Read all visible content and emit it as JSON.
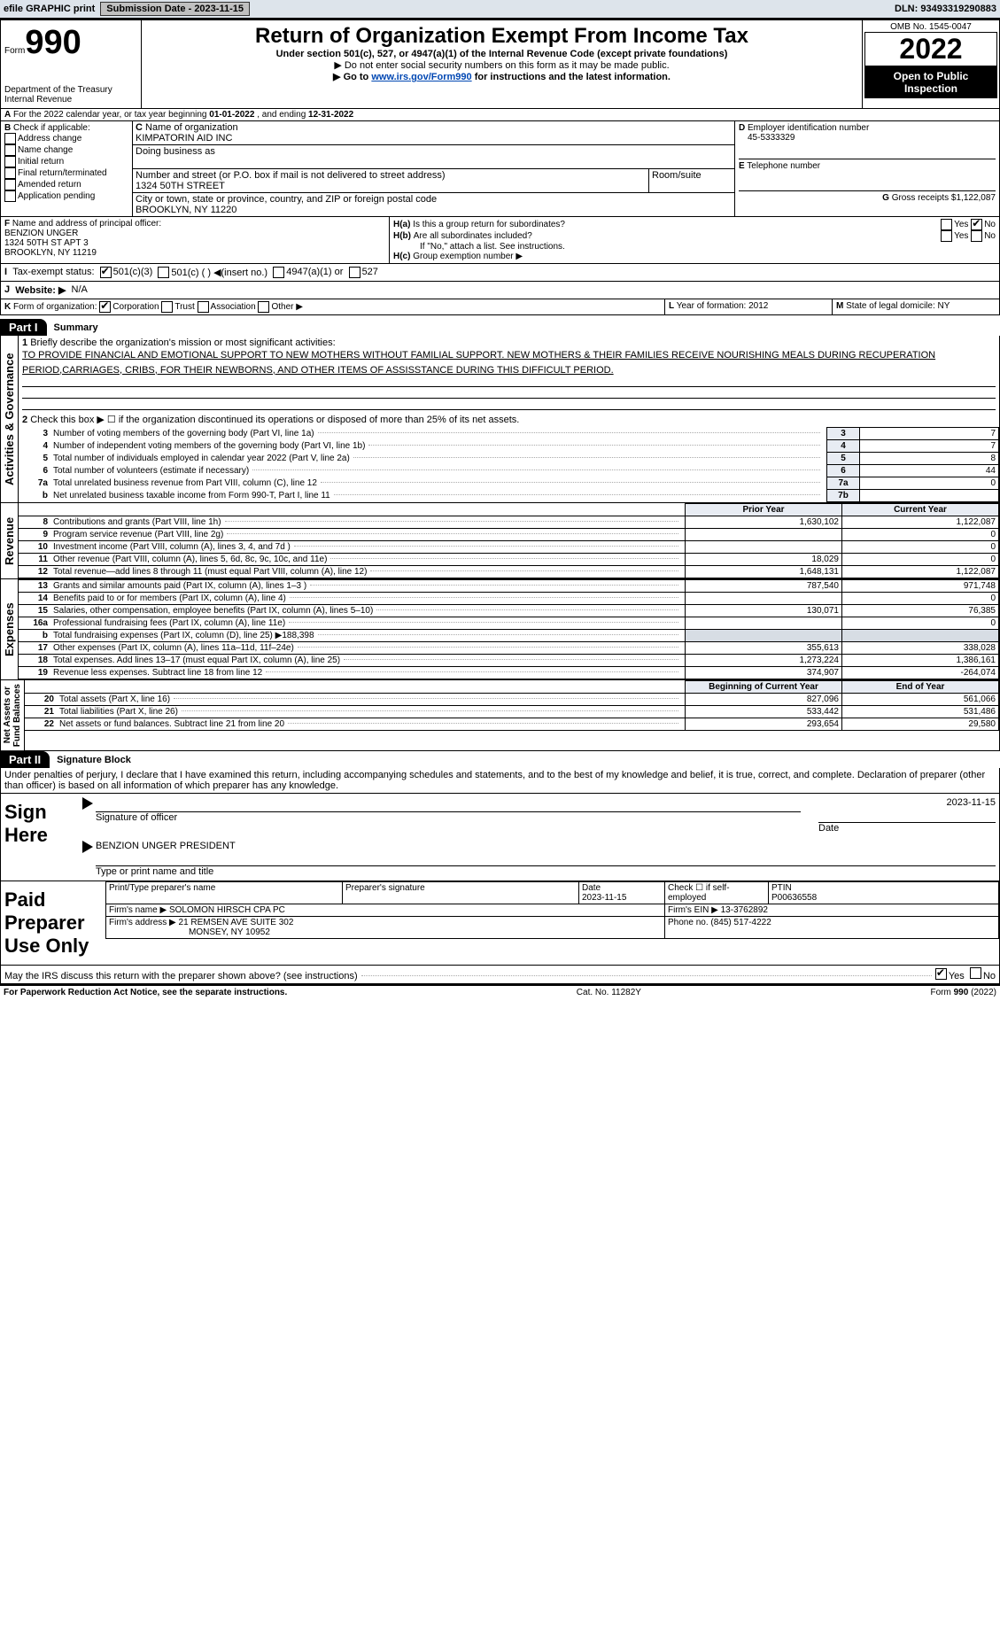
{
  "topbar": {
    "efile": "efile GRAPHIC print",
    "submission": "Submission Date - 2023-11-15",
    "dln": "DLN: 93493319290883"
  },
  "hdr": {
    "form": "990",
    "formword": "Form",
    "dept": "Department of the Treasury\nInternal Revenue",
    "title": "Return of Organization Exempt From Income Tax",
    "sub1": "Under section 501(c), 527, or 4947(a)(1) of the Internal Revenue Code (except private foundations)",
    "sub2": "▶ Do not enter social security numbers on this form as it may be made public.",
    "sub3": "▶ Go to ",
    "sub3link": "www.irs.gov/Form990",
    "sub3b": " for instructions and the latest information.",
    "omb": "OMB No. 1545-0047",
    "year": "2022",
    "badge": "Open to Public\nInspection"
  },
  "periodA": {
    "pre": "For the 2022 calendar year, or tax year beginning ",
    "beg": "01-01-2022",
    "mid": " , and ending ",
    "end": "12-31-2022"
  },
  "B": {
    "label": "Check if applicable:",
    "opts": [
      "Address change",
      "Name change",
      "Initial return",
      "Final return/terminated",
      "Amended return",
      "Application pending"
    ]
  },
  "C": {
    "nameLabel": "Name of organization",
    "name": "KIMPATORIN AID INC",
    "dbaLabel": "Doing business as",
    "dba": "",
    "streetLabel": "Number and street (or P.O. box if mail is not delivered to street address)",
    "street": "1324 50TH STREET",
    "room": "Room/suite",
    "cityLabel": "City or town, state or province, country, and ZIP or foreign postal code",
    "city": "BROOKLYN, NY  11220"
  },
  "D": {
    "label": "Employer identification number",
    "val": "45-5333329"
  },
  "E": {
    "label": "Telephone number",
    "val": ""
  },
  "G": {
    "label": "Gross receipts $",
    "val": "1,122,087"
  },
  "F": {
    "label": "Name and address of principal officer:",
    "name": "BENZION UNGER",
    "addr1": "1324 50TH ST APT 3",
    "addr2": "BROOKLYN, NY  11219"
  },
  "H": {
    "a": "Is this a group return for subordinates?",
    "ayes": "Yes",
    "ano": "No",
    "b": "Are all subordinates included?",
    "byes": "Yes",
    "bno": "No",
    "bnote": "If \"No,\" attach a list. See instructions.",
    "c": "Group exemption number ▶"
  },
  "I": {
    "label": "Tax-exempt status:",
    "o1": "501(c)(3)",
    "o2": "501(c) (  ) ◀(insert no.)",
    "o3": "4947(a)(1) or",
    "o4": "527"
  },
  "J": {
    "label": "Website: ▶",
    "val": "N/A"
  },
  "K": {
    "label": "Form of organization:",
    "o1": "Corporation",
    "o2": "Trust",
    "o3": "Association",
    "o4": "Other ▶"
  },
  "L": {
    "label": "Year of formation:",
    "val": "2012"
  },
  "M": {
    "label": "State of legal domicile:",
    "val": "NY"
  },
  "partI": {
    "tab": "Part I",
    "title": "Summary",
    "q1": "Briefly describe the organization's mission or most significant activities:",
    "mission": "TO PROVIDE FINANCIAL AND EMOTIONAL SUPPORT TO NEW MOTHERS WITHOUT FAMILIAL SUPPORT. NEW MOTHERS & THEIR FAMILIES RECEIVE NOURISHING MEALS DURING RECUPERATION PERIOD,CARRIAGES, CRIBS, FOR THEIR NEWBORNS, AND OTHER ITEMS OF ASSISSTANCE DURING THIS DIFFICULT PERIOD.",
    "q2": "Check this box ▶ ☐ if the organization discontinued its operations or disposed of more than 25% of its net assets.",
    "lines": [
      {
        "n": "3",
        "t": "Number of voting members of the governing body (Part VI, line 1a)",
        "box": "3",
        "v": "7"
      },
      {
        "n": "4",
        "t": "Number of independent voting members of the governing body (Part VI, line 1b)",
        "box": "4",
        "v": "7"
      },
      {
        "n": "5",
        "t": "Total number of individuals employed in calendar year 2022 (Part V, line 2a)",
        "box": "5",
        "v": "8"
      },
      {
        "n": "6",
        "t": "Total number of volunteers (estimate if necessary)",
        "box": "6",
        "v": "44"
      },
      {
        "n": "7a",
        "t": "Total unrelated business revenue from Part VIII, column (C), line 12",
        "box": "7a",
        "v": "0"
      },
      {
        "n": "b",
        "t": "Net unrelated business taxable income from Form 990-T, Part I, line 11",
        "box": "7b",
        "v": ""
      }
    ],
    "revHdr": {
      "prior": "Prior Year",
      "curr": "Current Year"
    },
    "rev": [
      {
        "n": "8",
        "t": "Contributions and grants (Part VIII, line 1h)",
        "p": "1,630,102",
        "c": "1,122,087"
      },
      {
        "n": "9",
        "t": "Program service revenue (Part VIII, line 2g)",
        "p": "",
        "c": "0"
      },
      {
        "n": "10",
        "t": "Investment income (Part VIII, column (A), lines 3, 4, and 7d )",
        "p": "",
        "c": "0"
      },
      {
        "n": "11",
        "t": "Other revenue (Part VIII, column (A), lines 5, 6d, 8c, 9c, 10c, and 11e)",
        "p": "18,029",
        "c": "0"
      },
      {
        "n": "12",
        "t": "Total revenue—add lines 8 through 11 (must equal Part VIII, column (A), line 12)",
        "p": "1,648,131",
        "c": "1,122,087"
      }
    ],
    "exp": [
      {
        "n": "13",
        "t": "Grants and similar amounts paid (Part IX, column (A), lines 1–3 )",
        "p": "787,540",
        "c": "971,748"
      },
      {
        "n": "14",
        "t": "Benefits paid to or for members (Part IX, column (A), line 4)",
        "p": "",
        "c": "0"
      },
      {
        "n": "15",
        "t": "Salaries, other compensation, employee benefits (Part IX, column (A), lines 5–10)",
        "p": "130,071",
        "c": "76,385"
      },
      {
        "n": "16a",
        "t": "Professional fundraising fees (Part IX, column (A), line 11e)",
        "p": "",
        "c": "0"
      },
      {
        "n": "b",
        "t": "Total fundraising expenses (Part IX, column (D), line 25) ▶188,398",
        "p": "—gray—",
        "c": "—gray—"
      },
      {
        "n": "17",
        "t": "Other expenses (Part IX, column (A), lines 11a–11d, 11f–24e)",
        "p": "355,613",
        "c": "338,028"
      },
      {
        "n": "18",
        "t": "Total expenses. Add lines 13–17 (must equal Part IX, column (A), line 25)",
        "p": "1,273,224",
        "c": "1,386,161"
      },
      {
        "n": "19",
        "t": "Revenue less expenses. Subtract line 18 from line 12",
        "p": "374,907",
        "c": "-264,074"
      }
    ],
    "netHdr": {
      "beg": "Beginning of Current Year",
      "end": "End of Year"
    },
    "net": [
      {
        "n": "20",
        "t": "Total assets (Part X, line 16)",
        "p": "827,096",
        "c": "561,066"
      },
      {
        "n": "21",
        "t": "Total liabilities (Part X, line 26)",
        "p": "533,442",
        "c": "531,486"
      },
      {
        "n": "22",
        "t": "Net assets or fund balances. Subtract line 21 from line 20",
        "p": "293,654",
        "c": "29,580"
      }
    ],
    "sideLabels": {
      "gov": "Activities & Governance",
      "rev": "Revenue",
      "exp": "Expenses",
      "net": "Net Assets or\nFund Balances"
    }
  },
  "partII": {
    "tab": "Part II",
    "title": "Signature Block",
    "decl": "Under penalties of perjury, I declare that I have examined this return, including accompanying schedules and statements, and to the best of my knowledge and belief, it is true, correct, and complete. Declaration of preparer (other than officer) is based on all information of which preparer has any knowledge.",
    "signhere": "Sign\nHere",
    "sig": "Signature of officer",
    "sigdate": "Date",
    "sigdateval": "2023-11-15",
    "typed": "BENZION UNGER  PRESIDENT",
    "typedlabel": "Type or print name and title",
    "paid": "Paid\nPreparer\nUse Only",
    "pp": {
      "pname": "Print/Type preparer's name",
      "psig": "Preparer's signature",
      "pdate": "Date",
      "pdateval": "2023-11-15",
      "ck": "Check ☐ if self-employed",
      "ptinlbl": "PTIN",
      "ptin": "P00636558",
      "firmname": "Firm's name ▶",
      "firm": "SOLOMON HIRSCH CPA PC",
      "feinlbl": "Firm's EIN ▶",
      "fein": "13-3762892",
      "firmaddr": "Firm's address ▶",
      "addr": "21 REMSEN AVE SUITE 302",
      "addr2": "MONSEY, NY  10952",
      "phonelbl": "Phone no.",
      "phone": "(845) 517-4222"
    },
    "may": "May the IRS discuss this return with the preparer shown above? (see instructions)",
    "yes": "Yes",
    "no": "No"
  },
  "footer": {
    "pra": "For Paperwork Reduction Act Notice, see the separate instructions.",
    "cat": "Cat. No. 11282Y",
    "form": "Form 990 (2022)"
  },
  "colors": {
    "topbar": "#dde4eb",
    "num": "#e8ecf3",
    "gray": "#d7dde4",
    "link": "#0047b3"
  }
}
